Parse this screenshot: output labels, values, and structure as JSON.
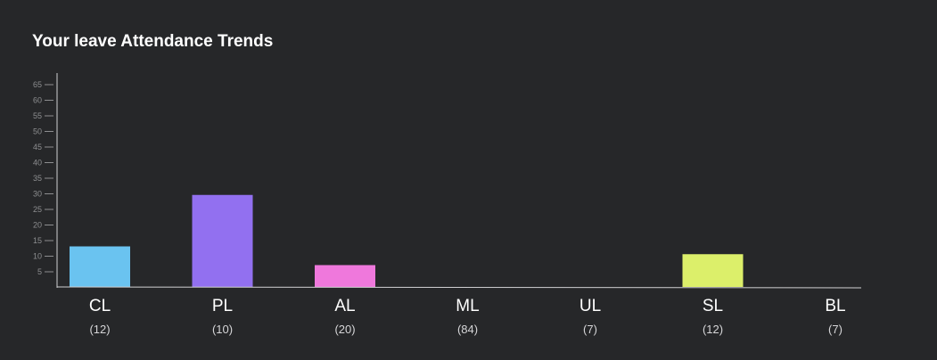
{
  "header": {
    "title": "Your leave Attendance Trends"
  },
  "chart_data": {
    "type": "bar",
    "title": "Your leave Attendance Trends",
    "xlabel": "",
    "ylabel": "",
    "ylim": [
      0,
      68
    ],
    "yticks": [
      5,
      10,
      15,
      20,
      25,
      30,
      35,
      40,
      45,
      50,
      55,
      60,
      65
    ],
    "grid": false,
    "categories": [
      "CL",
      "PL",
      "AL",
      "ML",
      "UL",
      "SL",
      "BL"
    ],
    "sublabels": [
      "(12)",
      "(10)",
      "(20)",
      "(84)",
      "(7)",
      "(12)",
      "(7)"
    ],
    "values": [
      13,
      29.5,
      7,
      0,
      0,
      10.5,
      0
    ],
    "colors": [
      "#6ac3f0",
      "#9270f0",
      "#ef78dc",
      "#6ac3f0",
      "#6ac3f0",
      "#dcef6a",
      "#6ac3f0"
    ],
    "axis_color": "#d0d0d2"
  }
}
